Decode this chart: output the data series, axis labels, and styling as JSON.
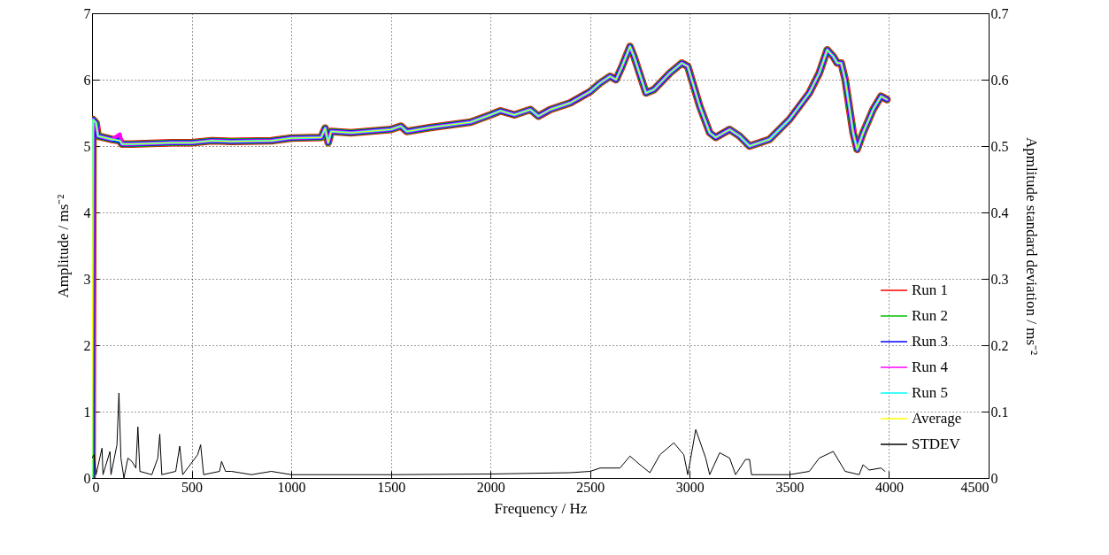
{
  "chart_data": {
    "type": "line",
    "xlabel": "Frequency / Hz",
    "ylabel": "Amplitude / ms⁻²",
    "y2label": "Apmlitude standard deviation / ms⁻²",
    "xlim": [
      0,
      4500
    ],
    "xticks": [
      0,
      500,
      1000,
      1500,
      2000,
      2500,
      3000,
      3500,
      4000,
      4500
    ],
    "ylim": [
      0,
      7
    ],
    "yticks": [
      0,
      1,
      2,
      3,
      4,
      5,
      6,
      7
    ],
    "y2lim": [
      0,
      0.7
    ],
    "y2ticks": [
      0,
      0.1,
      0.2,
      0.3,
      0.4,
      0.5,
      0.6,
      0.7
    ],
    "grid": true,
    "legend": "bottom right",
    "line_style": "solid",
    "x": [
      0,
      5,
      20,
      30,
      100,
      140,
      150,
      200,
      300,
      400,
      500,
      600,
      700,
      900,
      1000,
      1150,
      1170,
      1185,
      1200,
      1300,
      1500,
      1550,
      1580,
      1700,
      1800,
      1900,
      2000,
      2050,
      2120,
      2200,
      2240,
      2300,
      2400,
      2500,
      2550,
      2600,
      2630,
      2660,
      2700,
      2720,
      2780,
      2820,
      2900,
      2960,
      2990,
      3050,
      3100,
      3130,
      3200,
      3250,
      3300,
      3350,
      3400,
      3500,
      3600,
      3650,
      3690,
      3720,
      3740,
      3760,
      3780,
      3820,
      3840,
      3870,
      3920,
      3960,
      3990
    ],
    "series": [
      {
        "name": "Run 1",
        "color": "#ff0000",
        "values": [
          0,
          5.4,
          5.35,
          5.15,
          5.1,
          5.08,
          5.03,
          5.03,
          5.04,
          5.05,
          5.05,
          5.08,
          5.07,
          5.08,
          5.12,
          5.13,
          5.27,
          5.05,
          5.22,
          5.2,
          5.25,
          5.3,
          5.22,
          5.28,
          5.32,
          5.36,
          5.47,
          5.53,
          5.47,
          5.55,
          5.45,
          5.55,
          5.65,
          5.82,
          5.95,
          6.05,
          6.0,
          6.2,
          6.5,
          6.35,
          5.8,
          5.85,
          6.1,
          6.25,
          6.2,
          5.6,
          5.2,
          5.13,
          5.25,
          5.15,
          5.0,
          5.05,
          5.1,
          5.4,
          5.8,
          6.1,
          6.45,
          6.35,
          6.25,
          6.25,
          6.0,
          5.2,
          4.95,
          5.2,
          5.55,
          5.75,
          5.7
        ]
      },
      {
        "name": "Run 2",
        "color": "#00c000",
        "values": [
          0,
          5.4,
          5.35,
          5.15,
          5.1,
          5.08,
          5.03,
          5.03,
          5.04,
          5.05,
          5.05,
          5.08,
          5.07,
          5.08,
          5.12,
          5.13,
          5.27,
          5.05,
          5.22,
          5.2,
          5.25,
          5.3,
          5.22,
          5.28,
          5.32,
          5.36,
          5.47,
          5.53,
          5.47,
          5.55,
          5.45,
          5.55,
          5.65,
          5.82,
          5.95,
          6.05,
          6.0,
          6.2,
          6.5,
          6.35,
          5.8,
          5.85,
          6.1,
          6.25,
          6.2,
          5.6,
          5.2,
          5.13,
          5.25,
          5.15,
          5.0,
          5.05,
          5.1,
          5.4,
          5.8,
          6.1,
          6.45,
          6.35,
          6.25,
          6.25,
          6.0,
          5.2,
          4.95,
          5.2,
          5.55,
          5.75,
          5.7
        ]
      },
      {
        "name": "Run 3",
        "color": "#0000ff",
        "values": [
          0,
          5.4,
          5.35,
          5.15,
          5.1,
          5.08,
          5.03,
          5.03,
          5.04,
          5.05,
          5.05,
          5.08,
          5.07,
          5.08,
          5.12,
          5.13,
          5.27,
          5.05,
          5.22,
          5.2,
          5.25,
          5.3,
          5.22,
          5.28,
          5.32,
          5.36,
          5.47,
          5.53,
          5.47,
          5.55,
          5.45,
          5.55,
          5.65,
          5.82,
          5.95,
          6.05,
          6.0,
          6.2,
          6.5,
          6.35,
          5.8,
          5.85,
          6.1,
          6.25,
          6.2,
          5.6,
          5.2,
          5.13,
          5.25,
          5.15,
          5.0,
          5.05,
          5.1,
          5.4,
          5.8,
          6.1,
          6.45,
          6.35,
          6.25,
          6.25,
          6.0,
          5.2,
          4.95,
          5.2,
          5.55,
          5.75,
          5.7
        ]
      },
      {
        "name": "Run 4",
        "color": "#ff00ff",
        "values": [
          0,
          5.4,
          5.35,
          5.15,
          5.1,
          5.18,
          5.03,
          5.03,
          5.04,
          5.05,
          5.05,
          5.08,
          5.07,
          5.08,
          5.12,
          5.13,
          5.27,
          5.05,
          5.22,
          5.2,
          5.25,
          5.3,
          5.22,
          5.28,
          5.32,
          5.36,
          5.47,
          5.53,
          5.47,
          5.55,
          5.45,
          5.55,
          5.65,
          5.82,
          5.95,
          6.05,
          6.0,
          6.2,
          6.5,
          6.35,
          5.8,
          5.85,
          6.1,
          6.25,
          6.2,
          5.6,
          5.2,
          5.13,
          5.25,
          5.15,
          5.0,
          5.05,
          5.1,
          5.4,
          5.8,
          6.1,
          6.45,
          6.35,
          6.25,
          6.25,
          6.0,
          5.2,
          4.95,
          5.2,
          5.55,
          5.75,
          5.7
        ]
      },
      {
        "name": "Run 5",
        "color": "#00ffff",
        "values": [
          0,
          5.4,
          5.35,
          5.15,
          5.1,
          5.08,
          5.03,
          5.03,
          5.04,
          5.05,
          5.05,
          5.08,
          5.07,
          5.08,
          5.12,
          5.13,
          5.27,
          5.05,
          5.22,
          5.2,
          5.25,
          5.3,
          5.22,
          5.28,
          5.32,
          5.36,
          5.47,
          5.53,
          5.47,
          5.55,
          5.45,
          5.55,
          5.65,
          5.82,
          5.95,
          6.05,
          6.0,
          6.2,
          6.5,
          6.35,
          5.8,
          5.85,
          6.1,
          6.25,
          6.2,
          5.6,
          5.2,
          5.13,
          5.25,
          5.15,
          5.0,
          5.05,
          5.1,
          5.4,
          5.8,
          6.1,
          6.45,
          6.35,
          6.25,
          6.25,
          6.0,
          5.2,
          4.95,
          5.2,
          5.55,
          5.75,
          5.7
        ]
      },
      {
        "name": "Average",
        "color": "#ffff00",
        "values": [
          0,
          5.4,
          5.35,
          5.15,
          5.1,
          5.08,
          5.03,
          5.03,
          5.04,
          5.05,
          5.05,
          5.08,
          5.07,
          5.08,
          5.12,
          5.13,
          5.27,
          5.05,
          5.22,
          5.2,
          5.25,
          5.3,
          5.22,
          5.28,
          5.32,
          5.36,
          5.47,
          5.53,
          5.47,
          5.55,
          5.45,
          5.55,
          5.65,
          5.82,
          5.95,
          6.05,
          6.0,
          6.2,
          6.5,
          6.35,
          5.8,
          5.85,
          6.1,
          6.25,
          6.2,
          5.6,
          5.2,
          5.13,
          5.25,
          5.15,
          5.0,
          5.05,
          5.1,
          5.4,
          5.8,
          6.1,
          6.45,
          6.35,
          6.25,
          6.25,
          6.0,
          5.2,
          4.95,
          5.2,
          5.55,
          5.75,
          5.7
        ]
      },
      {
        "name": "STDEV",
        "color": "#000000",
        "axis": "y2",
        "x": [
          0,
          10,
          20,
          50,
          55,
          90,
          95,
          125,
          135,
          145,
          160,
          180,
          200,
          220,
          230,
          240,
          300,
          330,
          340,
          350,
          420,
          440,
          455,
          530,
          545,
          560,
          640,
          650,
          670,
          700,
          800,
          900,
          1000,
          1500,
          2000,
          2400,
          2500,
          2550,
          2650,
          2700,
          2750,
          2800,
          2850,
          2920,
          2970,
          2990,
          3030,
          3080,
          3100,
          3150,
          3200,
          3230,
          3280,
          3300,
          3310,
          3500,
          3600,
          3650,
          3720,
          3780,
          3850,
          3870,
          3900,
          3960,
          3980
        ],
        "values": [
          0.03,
          0.035,
          0.005,
          0.045,
          0.005,
          0.04,
          0.005,
          0.05,
          0.128,
          0.03,
          0,
          0.03,
          0.025,
          0.015,
          0.077,
          0.01,
          0.005,
          0.03,
          0.066,
          0.005,
          0.01,
          0.048,
          0.005,
          0.035,
          0.05,
          0.005,
          0.01,
          0.025,
          0.01,
          0.01,
          0.005,
          0.01,
          0.005,
          0.005,
          0.006,
          0.008,
          0.01,
          0.015,
          0.015,
          0.033,
          0.02,
          0.008,
          0.035,
          0.053,
          0.035,
          0.005,
          0.073,
          0.03,
          0.005,
          0.038,
          0.03,
          0.005,
          0.028,
          0.028,
          0.005,
          0.005,
          0.01,
          0.03,
          0.04,
          0.01,
          0.005,
          0.02,
          0.012,
          0.015,
          0.01
        ]
      }
    ]
  }
}
